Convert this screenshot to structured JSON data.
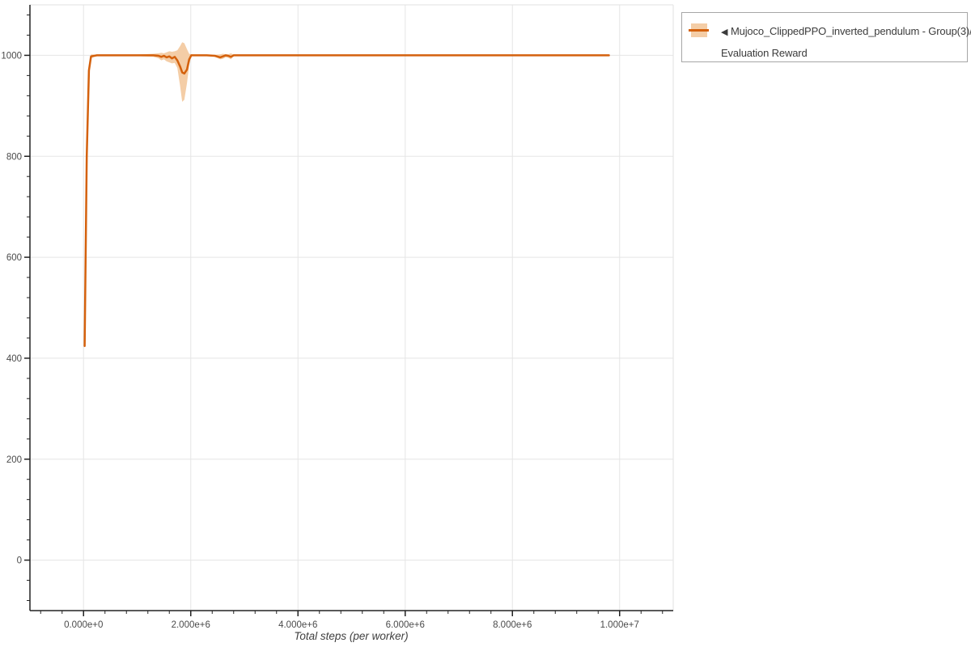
{
  "page": {
    "background": "#ffffff"
  },
  "legend": {
    "collapse_icon": "◀",
    "entries": [
      {
        "label": "Mujoco_ClippedPPO_inverted_pendulum - Group(3)/Evaluation Reward",
        "line_color": "#d4610d",
        "band_color": "#f4cda6"
      }
    ]
  },
  "chart_data": {
    "type": "line",
    "title": "",
    "xlabel": "Total steps (per worker)",
    "ylabel": "",
    "xlim": [
      -1000000,
      11000000
    ],
    "ylim": [
      -100,
      1100
    ],
    "grid": true,
    "legend_position": "top-right-outside",
    "x_minor_step": 400000,
    "y_minor_step": 40,
    "x_ticks": [
      {
        "value": 0,
        "label": "0.000e+0"
      },
      {
        "value": 2000000,
        "label": "2.000e+6"
      },
      {
        "value": 4000000,
        "label": "4.000e+6"
      },
      {
        "value": 6000000,
        "label": "6.000e+6"
      },
      {
        "value": 8000000,
        "label": "8.000e+6"
      },
      {
        "value": 10000000,
        "label": "1.000e+7"
      }
    ],
    "y_ticks": [
      {
        "value": 0,
        "label": "0"
      },
      {
        "value": 200,
        "label": "200"
      },
      {
        "value": 400,
        "label": "400"
      },
      {
        "value": 600,
        "label": "600"
      },
      {
        "value": 800,
        "label": "800"
      },
      {
        "value": 1000,
        "label": "1000"
      }
    ],
    "colors": {
      "grid": "#e5e5e5",
      "frame": "#e2e2e2",
      "axis": "#222222",
      "tick_label": "#4a4a4a",
      "axis_label": "#3f3f3f"
    },
    "series": [
      {
        "name": "Mujoco_ClippedPPO_inverted_pendulum - Group(3)/Evaluation Reward",
        "color": "#d4610d",
        "band_color": "#f4cda6",
        "x": [
          20000,
          60000,
          100000,
          140000,
          250000,
          500000,
          900000,
          1300000,
          1400000,
          1450000,
          1500000,
          1550000,
          1600000,
          1650000,
          1700000,
          1750000,
          1800000,
          1840000,
          1880000,
          1930000,
          1970000,
          2010000,
          2100000,
          2300000,
          2450000,
          2550000,
          2600000,
          2650000,
          2700000,
          2750000,
          2800000,
          3000000,
          4000000,
          5000000,
          6000000,
          7000000,
          8000000,
          9000000,
          9800000
        ],
        "mean": [
          424,
          800,
          970,
          998,
          1000,
          1000,
          1000,
          1000,
          999,
          997,
          999,
          996,
          998,
          994,
          997,
          990,
          978,
          966,
          964,
          972,
          992,
          1000,
          1000,
          1000,
          999,
          996,
          998,
          1000,
          999,
          997,
          1000,
          1000,
          1000,
          1000,
          1000,
          1000,
          1000,
          1000,
          1000
        ],
        "band_upper": [
          432,
          808,
          978,
          1002,
          1001,
          1001,
          1001,
          1003,
          1004,
          1005,
          1004,
          1006,
          1008,
          1007,
          1008,
          1010,
          1018,
          1026,
          1024,
          1012,
          1003,
          1002,
          1001,
          1001,
          1001,
          1002,
          1003,
          1002,
          1002,
          1004,
          1001,
          1001,
          1001,
          1001,
          1001,
          1001,
          1001,
          1001,
          1001
        ],
        "band_lower": [
          416,
          792,
          962,
          994,
          999,
          999,
          999,
          997,
          994,
          990,
          992,
          988,
          986,
          984,
          985,
          975,
          940,
          908,
          912,
          945,
          980,
          998,
          999,
          999,
          997,
          992,
          993,
          996,
          995,
          992,
          999,
          999,
          999,
          999,
          999,
          999,
          999,
          999,
          999
        ]
      }
    ]
  }
}
